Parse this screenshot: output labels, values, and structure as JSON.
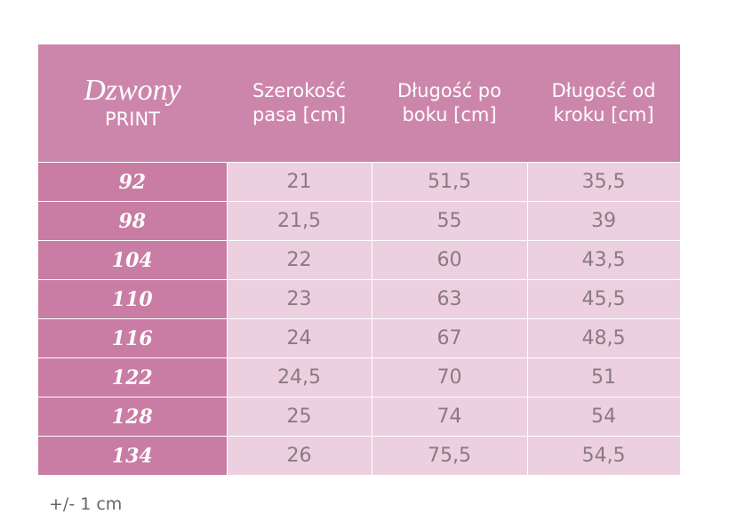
{
  "header": {
    "title": "Dzwony",
    "subtitle": "PRINT",
    "columns": [
      "Szerokość pasa [cm]",
      "Długość po boku [cm]",
      "Długość od kroku [cm]"
    ]
  },
  "table": {
    "rows": [
      [
        "92",
        "21",
        "51,5",
        "35,5"
      ],
      [
        "98",
        "21,5",
        "55",
        "39"
      ],
      [
        "104",
        "22",
        "60",
        "43,5"
      ],
      [
        "110",
        "23",
        "63",
        "45,5"
      ],
      [
        "116",
        "24",
        "67",
        "48,5"
      ],
      [
        "122",
        "24,5",
        "70",
        "51"
      ],
      [
        "128",
        "25",
        "74",
        "54"
      ],
      [
        "134",
        "26",
        "75,5",
        "54,5"
      ]
    ]
  },
  "note": "+/- 1 cm"
}
